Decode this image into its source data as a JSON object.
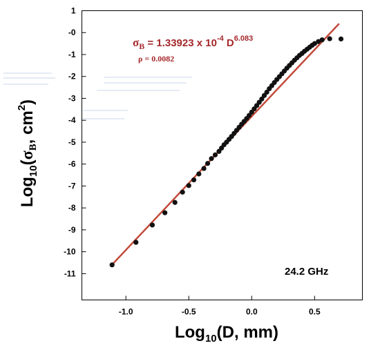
{
  "chart_data": {
    "type": "scatter",
    "title": "",
    "xlabel": {
      "base": "Log",
      "sub": "10",
      "rest": "(D, mm)"
    },
    "ylabel": {
      "base": "Log",
      "sub": "10",
      "open": "(",
      "sigma": "σ",
      "sigma_sub": "B",
      "mid": ", cm",
      "sup": "2",
      "close": ")"
    },
    "xlim": [
      -1.35,
      0.88
    ],
    "ylim": [
      -12.2,
      1
    ],
    "x_ticks": [
      {
        "value": -1.0,
        "label": "-1.0"
      },
      {
        "value": -0.5,
        "label": "-0.5"
      },
      {
        "value": 0.0,
        "label": "0.0"
      },
      {
        "value": 0.5,
        "label": "0.5"
      }
    ],
    "y_ticks": [
      {
        "value": 1,
        "label": "1"
      },
      {
        "value": 0,
        "label": "-0"
      },
      {
        "value": -1,
        "label": "-1"
      },
      {
        "value": -2,
        "label": "-2"
      },
      {
        "value": -3,
        "label": "-3"
      },
      {
        "value": -4,
        "label": "-4"
      },
      {
        "value": -5,
        "label": "-5"
      },
      {
        "value": -6,
        "label": "-6"
      },
      {
        "value": -7,
        "label": "-7"
      },
      {
        "value": -8,
        "label": "-8"
      },
      {
        "value": -9,
        "label": "-9"
      },
      {
        "value": -10,
        "label": "-10"
      },
      {
        "value": -11,
        "label": "-11"
      }
    ],
    "grid": false,
    "series": [
      {
        "kind": "points",
        "color": "#111111",
        "x": [
          -1.11,
          -0.92,
          -0.79,
          -0.69,
          -0.61,
          -0.55,
          -0.5,
          -0.46,
          -0.42,
          -0.38,
          -0.35,
          -0.32,
          -0.29,
          -0.26,
          -0.24,
          -0.22,
          -0.2,
          -0.18,
          -0.16,
          -0.14,
          -0.12,
          -0.1,
          -0.08,
          -0.06,
          -0.04,
          -0.02,
          0.0,
          0.02,
          0.04,
          0.06,
          0.08,
          0.1,
          0.12,
          0.14,
          0.16,
          0.18,
          0.2,
          0.22,
          0.24,
          0.26,
          0.28,
          0.3,
          0.32,
          0.34,
          0.36,
          0.38,
          0.4,
          0.42,
          0.44,
          0.46,
          0.48,
          0.5,
          0.53,
          0.56,
          0.62,
          0.71
        ],
        "y": [
          -10.6,
          -9.57,
          -8.78,
          -8.22,
          -7.75,
          -7.28,
          -6.98,
          -6.72,
          -6.45,
          -6.2,
          -5.97,
          -5.75,
          -5.58,
          -5.42,
          -5.27,
          -5.12,
          -5.0,
          -4.87,
          -4.74,
          -4.6,
          -4.46,
          -4.32,
          -4.18,
          -4.05,
          -3.92,
          -3.78,
          -3.63,
          -3.48,
          -3.33,
          -3.18,
          -3.03,
          -2.87,
          -2.72,
          -2.56,
          -2.42,
          -2.28,
          -2.14,
          -2.01,
          -1.88,
          -1.75,
          -1.62,
          -1.5,
          -1.38,
          -1.26,
          -1.15,
          -1.04,
          -0.95,
          -0.85,
          -0.76,
          -0.67,
          -0.58,
          -0.5,
          -0.41,
          -0.33,
          -0.28,
          -0.29
        ]
      },
      {
        "kind": "fit-line",
        "color": "#c24a3a",
        "x": [
          -1.12,
          0.695
        ],
        "y": [
          -10.65,
          0.41
        ]
      }
    ],
    "annotations": {
      "equation": {
        "sigma": "σ",
        "sub": "B",
        "text": " = 1.33923 x 10",
        "exp": "-4",
        "d": " D",
        "d_exp": "6.083"
      },
      "rho": "ρ = 0.0082",
      "frequency": "24.2 GHz"
    },
    "colors": {
      "fit": "#c24a3a",
      "equation": "#a5282b",
      "points": "#111111"
    }
  }
}
